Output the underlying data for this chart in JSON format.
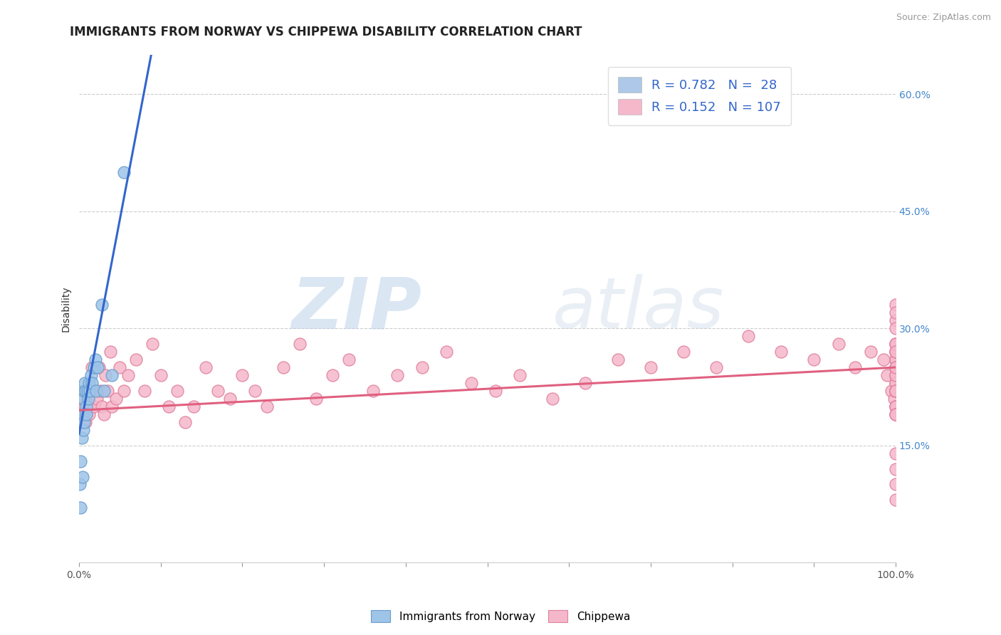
{
  "title": "IMMIGRANTS FROM NORWAY VS CHIPPEWA DISABILITY CORRELATION CHART",
  "source": "Source: ZipAtlas.com",
  "ylabel": "Disability",
  "y_tick_labels": [
    "15.0%",
    "30.0%",
    "45.0%",
    "60.0%"
  ],
  "y_tick_values": [
    0.15,
    0.3,
    0.45,
    0.6
  ],
  "x_tick_values": [
    0.0,
    0.1,
    0.2,
    0.3,
    0.4,
    0.5,
    0.6,
    0.7,
    0.8,
    0.9,
    1.0
  ],
  "xlim": [
    0.0,
    1.0
  ],
  "ylim": [
    0.0,
    0.65
  ],
  "legend_entries": [
    {
      "label_R": "R = 0.782",
      "label_N": "N =  28",
      "color": "#adc8e8"
    },
    {
      "label_R": "R = 0.152",
      "label_N": "N = 107",
      "color": "#f5b8cb"
    }
  ],
  "watermark_zip": "ZIP",
  "watermark_atlas": "atlas",
  "norway_color": "#9ec4e8",
  "norway_edge": "#6a9fcc",
  "chippewa_color": "#f5b8cb",
  "chippewa_edge": "#e080a0",
  "norway_line_color": "#3366cc",
  "chippewa_line_color": "#e06080",
  "norway_scatter_x": [
    0.001,
    0.002,
    0.002,
    0.003,
    0.004,
    0.004,
    0.005,
    0.005,
    0.006,
    0.006,
    0.007,
    0.008,
    0.009,
    0.009,
    0.01,
    0.011,
    0.012,
    0.013,
    0.015,
    0.016,
    0.018,
    0.02,
    0.021,
    0.023,
    0.028,
    0.03,
    0.04,
    0.055
  ],
  "norway_scatter_y": [
    0.1,
    0.13,
    0.07,
    0.16,
    0.19,
    0.11,
    0.21,
    0.17,
    0.22,
    0.18,
    0.23,
    0.22,
    0.2,
    0.19,
    0.22,
    0.21,
    0.23,
    0.22,
    0.24,
    0.23,
    0.25,
    0.26,
    0.22,
    0.25,
    0.33,
    0.22,
    0.24,
    0.5
  ],
  "chippewa_scatter_x": [
    0.002,
    0.003,
    0.004,
    0.005,
    0.006,
    0.007,
    0.008,
    0.009,
    0.01,
    0.012,
    0.014,
    0.016,
    0.018,
    0.02,
    0.022,
    0.024,
    0.026,
    0.028,
    0.03,
    0.032,
    0.035,
    0.038,
    0.04,
    0.045,
    0.05,
    0.055,
    0.06,
    0.07,
    0.08,
    0.09,
    0.1,
    0.11,
    0.12,
    0.13,
    0.14,
    0.155,
    0.17,
    0.185,
    0.2,
    0.215,
    0.23,
    0.25,
    0.27,
    0.29,
    0.31,
    0.33,
    0.36,
    0.39,
    0.42,
    0.45,
    0.48,
    0.51,
    0.54,
    0.58,
    0.62,
    0.66,
    0.7,
    0.74,
    0.78,
    0.82,
    0.86,
    0.9,
    0.93,
    0.95,
    0.97,
    0.985,
    0.99,
    0.995,
    0.998,
    1.0,
    1.0,
    1.0,
    1.0,
    1.0,
    1.0,
    1.0,
    1.0,
    1.0,
    1.0,
    1.0,
    1.0,
    1.0,
    1.0,
    1.0,
    1.0,
    1.0,
    1.0,
    1.0,
    1.0,
    1.0,
    1.0,
    1.0,
    1.0,
    1.0,
    1.0,
    1.0,
    1.0,
    1.0,
    1.0,
    1.0,
    1.0,
    1.0,
    1.0,
    1.0,
    1.0,
    1.0,
    1.0
  ],
  "chippewa_scatter_y": [
    0.19,
    0.2,
    0.18,
    0.21,
    0.19,
    0.2,
    0.18,
    0.22,
    0.2,
    0.19,
    0.22,
    0.25,
    0.2,
    0.22,
    0.21,
    0.25,
    0.22,
    0.2,
    0.19,
    0.24,
    0.22,
    0.27,
    0.2,
    0.21,
    0.25,
    0.22,
    0.24,
    0.26,
    0.22,
    0.28,
    0.24,
    0.2,
    0.22,
    0.18,
    0.2,
    0.25,
    0.22,
    0.21,
    0.24,
    0.22,
    0.2,
    0.25,
    0.28,
    0.21,
    0.24,
    0.26,
    0.22,
    0.24,
    0.25,
    0.27,
    0.23,
    0.22,
    0.24,
    0.21,
    0.23,
    0.26,
    0.25,
    0.27,
    0.25,
    0.29,
    0.27,
    0.26,
    0.28,
    0.25,
    0.27,
    0.26,
    0.24,
    0.22,
    0.21,
    0.19,
    0.22,
    0.25,
    0.2,
    0.27,
    0.23,
    0.26,
    0.25,
    0.22,
    0.28,
    0.24,
    0.2,
    0.27,
    0.22,
    0.26,
    0.24,
    0.28,
    0.2,
    0.19,
    0.25,
    0.22,
    0.27,
    0.23,
    0.22,
    0.24,
    0.28,
    0.14,
    0.12,
    0.1,
    0.33,
    0.31,
    0.3,
    0.27,
    0.25,
    0.19,
    0.22,
    0.08,
    0.32
  ],
  "norway_reg_slope": 5.5,
  "norway_reg_intercept": 0.165,
  "chippewa_reg_slope": 0.055,
  "chippewa_reg_intercept": 0.195,
  "background_color": "#ffffff",
  "grid_color": "#cccccc",
  "title_fontsize": 12,
  "axis_label_fontsize": 10,
  "tick_fontsize": 10,
  "legend_fontsize": 13
}
